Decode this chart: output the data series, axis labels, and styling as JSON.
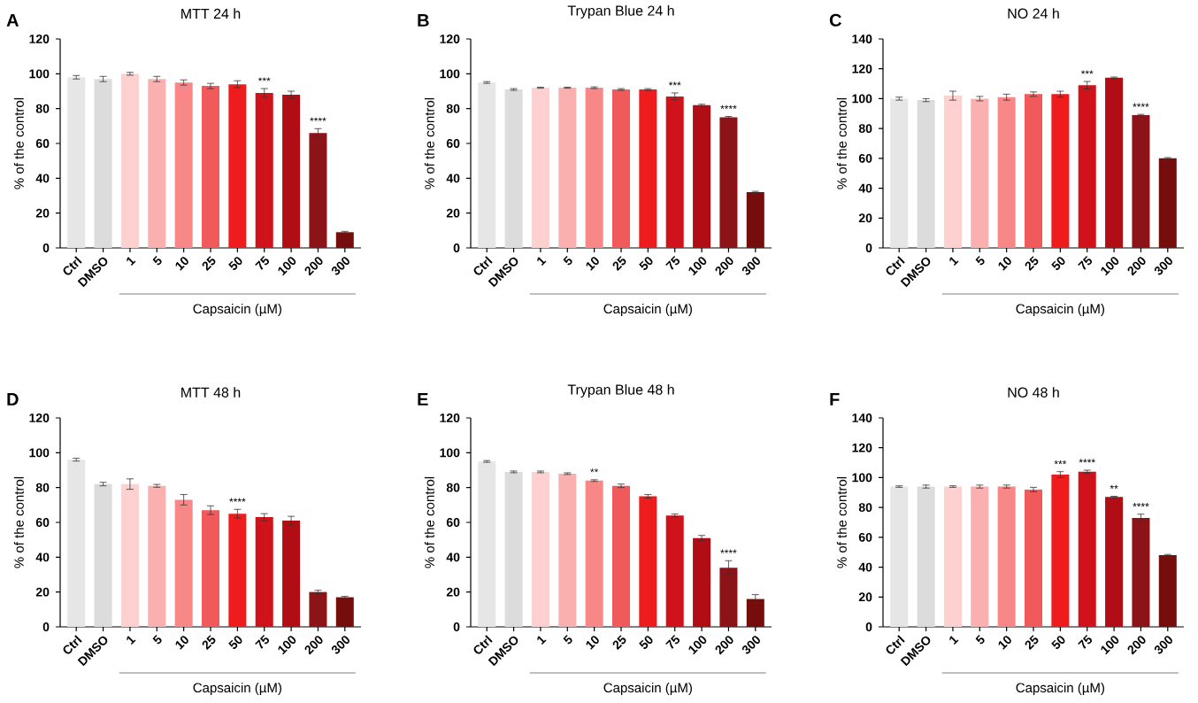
{
  "chart_data": [
    {
      "type": "bar",
      "title": "MTT 24 h",
      "ylabel": "% of the control",
      "xlabel": "Capsaicin (µM)",
      "categories": [
        "Ctrl",
        "DMSO",
        "1",
        "5",
        "10",
        "25",
        "50",
        "75",
        "100",
        "200",
        "300"
      ],
      "values": [
        98,
        97,
        100,
        97,
        95,
        93,
        94,
        89,
        88,
        66,
        9
      ],
      "errors": [
        1,
        1.5,
        0.8,
        1.5,
        1.5,
        1.5,
        2,
        2.5,
        2,
        2.5,
        0.5
      ],
      "colors": [
        "#e6e6e6",
        "#dcdcdc",
        "#ffd0d0",
        "#fbb0b0",
        "#f88888",
        "#f05a5a",
        "#ee1c1c",
        "#d0121a",
        "#b00e14",
        "#8c1418",
        "#760d0d"
      ],
      "ylim": [
        0,
        120
      ],
      "yticks": [
        0,
        20,
        40,
        60,
        80,
        100,
        120
      ],
      "annotations": [
        "A",
        {
          "text": "***",
          "x": "75",
          "y": 89
        },
        {
          "text": "****",
          "x": "200",
          "y": 66
        }
      ]
    },
    {
      "type": "bar",
      "title": "Trypan Blue 24 h",
      "ylabel": "% of the control",
      "xlabel": "Capsaicin (µM)",
      "categories": [
        "Ctrl",
        "DMSO",
        "1",
        "5",
        "10",
        "25",
        "50",
        "75",
        "100",
        "200",
        "300"
      ],
      "values": [
        95,
        91,
        92,
        92,
        92,
        91,
        91,
        87,
        82,
        75,
        32
      ],
      "errors": [
        0.5,
        0.5,
        0.3,
        0.3,
        0.5,
        0.5,
        0.5,
        2,
        0.5,
        0.5,
        0.5
      ],
      "colors": [
        "#e6e6e6",
        "#dcdcdc",
        "#ffd0d0",
        "#fbb0b0",
        "#f88888",
        "#f05a5a",
        "#ee1c1c",
        "#d0121a",
        "#b00e14",
        "#8c1418",
        "#760d0d"
      ],
      "ylim": [
        0,
        120
      ],
      "yticks": [
        0,
        20,
        40,
        60,
        80,
        100,
        120
      ],
      "annotations": [
        "B",
        {
          "text": "***",
          "x": "75",
          "y": 87
        },
        {
          "text": "****",
          "x": "200",
          "y": 75
        }
      ]
    },
    {
      "type": "bar",
      "title": "NO 24 h",
      "ylabel": "% of the control",
      "xlabel": "Capsaicin (µM)",
      "categories": [
        "Ctrl",
        "DMSO",
        "1",
        "5",
        "10",
        "25",
        "50",
        "75",
        "100",
        "200",
        "300"
      ],
      "values": [
        100,
        99,
        102,
        100,
        101,
        103,
        103,
        109,
        114,
        89,
        60
      ],
      "errors": [
        1,
        1,
        3,
        1.5,
        2,
        1.5,
        2,
        2.5,
        0.5,
        0.5,
        0.5
      ],
      "colors": [
        "#e6e6e6",
        "#dcdcdc",
        "#ffd0d0",
        "#fbb0b0",
        "#f88888",
        "#f05a5a",
        "#ee1c1c",
        "#d0121a",
        "#b00e14",
        "#8c1418",
        "#760d0d"
      ],
      "ylim": [
        0,
        140
      ],
      "yticks": [
        0,
        20,
        40,
        60,
        80,
        100,
        120,
        140
      ],
      "annotations": [
        "C",
        {
          "text": "***",
          "x": "75",
          "y": 109
        },
        {
          "text": "****",
          "x": "200",
          "y": 89
        }
      ]
    },
    {
      "type": "bar",
      "title": "MTT 48 h",
      "ylabel": "% of the control",
      "xlabel": "Capsaicin (µM)",
      "categories": [
        "Ctrl",
        "DMSO",
        "1",
        "5",
        "10",
        "25",
        "50",
        "75",
        "100",
        "200",
        "300"
      ],
      "values": [
        96,
        82,
        82,
        81,
        73,
        67,
        65,
        63,
        61,
        20,
        17
      ],
      "errors": [
        0.8,
        1,
        3,
        0.8,
        3,
        2.5,
        2.5,
        2,
        2.5,
        1,
        0.5
      ],
      "colors": [
        "#e6e6e6",
        "#dcdcdc",
        "#ffd0d0",
        "#fbb0b0",
        "#f88888",
        "#f05a5a",
        "#ee1c1c",
        "#d0121a",
        "#b00e14",
        "#8c1418",
        "#760d0d"
      ],
      "ylim": [
        0,
        120
      ],
      "yticks": [
        0,
        20,
        40,
        60,
        80,
        100,
        120
      ],
      "annotations": [
        "D",
        {
          "text": "****",
          "x": "50",
          "y": 65
        }
      ]
    },
    {
      "type": "bar",
      "title": "Trypan Blue 48 h",
      "ylabel": "% of the control",
      "xlabel": "Capsaicin (µM)",
      "categories": [
        "Ctrl",
        "DMSO",
        "1",
        "5",
        "10",
        "25",
        "50",
        "75",
        "100",
        "200",
        "300"
      ],
      "values": [
        95,
        89,
        89,
        88,
        84,
        81,
        75,
        64,
        51,
        34,
        16
      ],
      "errors": [
        0.5,
        0.5,
        0.5,
        0.5,
        0.5,
        1,
        1,
        0.8,
        1.5,
        4,
        2.5
      ],
      "colors": [
        "#e6e6e6",
        "#dcdcdc",
        "#ffd0d0",
        "#fbb0b0",
        "#f88888",
        "#f05a5a",
        "#ee1c1c",
        "#d0121a",
        "#b00e14",
        "#8c1418",
        "#760d0d"
      ],
      "ylim": [
        0,
        120
      ],
      "yticks": [
        0,
        20,
        40,
        60,
        80,
        100,
        120
      ],
      "annotations": [
        "E",
        {
          "text": "**",
          "x": "10",
          "y": 84
        },
        {
          "text": "****",
          "x": "200",
          "y": 34
        }
      ]
    },
    {
      "type": "bar",
      "title": "NO 48 h",
      "ylabel": "% of the control",
      "xlabel": "Capsaicin (µM)",
      "categories": [
        "Ctrl",
        "DMSO",
        "1",
        "5",
        "10",
        "25",
        "50",
        "75",
        "100",
        "200",
        "300"
      ],
      "values": [
        94,
        94,
        94,
        94,
        94,
        92,
        102,
        104,
        87,
        73,
        48
      ],
      "errors": [
        0.5,
        1,
        0.5,
        1,
        1,
        1.5,
        2,
        1,
        0.5,
        2.5,
        0.5
      ],
      "colors": [
        "#e6e6e6",
        "#dcdcdc",
        "#ffd0d0",
        "#fbb0b0",
        "#f88888",
        "#f05a5a",
        "#ee1c1c",
        "#d0121a",
        "#b00e14",
        "#8c1418",
        "#760d0d"
      ],
      "ylim": [
        0,
        140
      ],
      "yticks": [
        0,
        20,
        40,
        60,
        80,
        100,
        120,
        140
      ],
      "annotations": [
        "F",
        {
          "text": "***",
          "x": "50",
          "y": 102
        },
        {
          "text": "****",
          "x": "75",
          "y": 104
        },
        {
          "text": "**",
          "x": "100",
          "y": 87
        },
        {
          "text": "****",
          "x": "200",
          "y": 73
        }
      ]
    }
  ]
}
